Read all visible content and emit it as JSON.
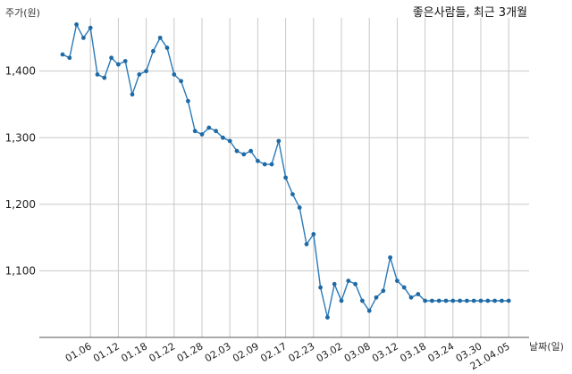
{
  "chart_data": {
    "type": "line",
    "title": "좋은사람들, 최근 3개월",
    "ylabel": "주가(원)",
    "xlabel": "날짜(일)",
    "ylim": [
      1000,
      1480
    ],
    "yticks": [
      1100,
      1200,
      1300,
      1400
    ],
    "ytick_labels": [
      "1,100",
      "1,200",
      "1,300",
      "1,400"
    ],
    "xtick_labels": [
      "01.06",
      "01.12",
      "01.18",
      "01.22",
      "01.28",
      "02.03",
      "02.09",
      "02.17",
      "02.23",
      "03.02",
      "03.08",
      "03.12",
      "03.18",
      "03.24",
      "03.30",
      "21.04.05"
    ],
    "xtick_index": [
      4,
      8,
      12,
      16,
      20,
      24,
      28,
      32,
      36,
      40,
      44,
      48,
      52,
      56,
      60,
      64
    ],
    "grid": true,
    "colors": {
      "line": "#2a7ab9",
      "marker": "#1f6aa5",
      "grid": "#c8c8c8"
    },
    "series": [
      {
        "values": [
          1425,
          1420,
          1470,
          1450,
          1465,
          1395,
          1390,
          1420,
          1410,
          1415,
          1365,
          1395,
          1400,
          1430,
          1450,
          1435,
          1395,
          1385,
          1355,
          1310,
          1305,
          1315,
          1310,
          1300,
          1295,
          1280,
          1275,
          1280,
          1265,
          1260,
          1260,
          1295,
          1240,
          1215,
          1195,
          1140,
          1155,
          1075,
          1030,
          1080,
          1055,
          1085,
          1080,
          1055,
          1040,
          1060,
          1070,
          1120,
          1085,
          1075,
          1060,
          1065,
          1055,
          1055,
          1055,
          1055,
          1055,
          1055,
          1055,
          1055,
          1055,
          1055,
          1055,
          1055,
          1055
        ]
      }
    ]
  }
}
